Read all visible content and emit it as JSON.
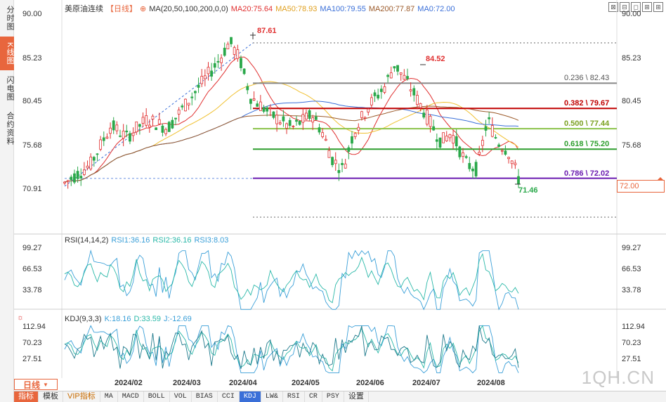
{
  "side_tabs": [
    "分时图",
    "K线图",
    "闪电图",
    "合约资料"
  ],
  "top_icons": [
    "⊠",
    "⊟",
    "◻",
    "⊞",
    "⊞"
  ],
  "legend": {
    "title": "美原油连续",
    "period": "【日线】",
    "ma_label": "MA(20,50,100,200,0,0)",
    "ma20": "MA20:75.64",
    "ma50": "MA50:78.93",
    "ma100": "MA100:79.55",
    "ma200": "MA200:77.87",
    "ma0": "MA0:72.00"
  },
  "price_axis": [
    "90.00",
    "85.23",
    "80.45",
    "75.68",
    "70.91"
  ],
  "fib": [
    {
      "label": "0.236 \\ 82.43",
      "price": 82.43,
      "color": "#888888"
    },
    {
      "label": "0.382 \\ 79.67",
      "price": 79.67,
      "color": "#c00000"
    },
    {
      "label": "0.500 \\ 77.44",
      "price": 77.44,
      "color": "#8bc34a"
    },
    {
      "label": "0.618 \\ 75.20",
      "price": 75.2,
      "color": "#2e9e2e"
    },
    {
      "label": "0.786 \\ 72.02",
      "price": 72.02,
      "color": "#6a1bb0"
    }
  ],
  "annotations": {
    "high": "87.61",
    "mid_high": "84.52",
    "low": "71.46"
  },
  "current_price": "72.00",
  "rsi": {
    "label": "RSI(14,14,2)",
    "r1": "RSI1:36.16",
    "r2": "RSI2:36.16",
    "r3": "RSI3:8.03",
    "axis": [
      "99.27",
      "66.53",
      "33.78"
    ]
  },
  "kdj": {
    "label": "KDJ(9,3,3)",
    "k": "K:18.16",
    "d": "D:33.59",
    "j": "J:-12.69",
    "axis": [
      "112.94",
      "70.23",
      "27.51"
    ]
  },
  "dates": [
    "2024/02",
    "2024/03",
    "2024/04",
    "2024/05",
    "2024/06",
    "2024/07",
    "2024/08"
  ],
  "period_label": "日线",
  "bottom_tabs": [
    "指标",
    "模板",
    "VIP指标",
    "MA",
    "MACD",
    "BOLL",
    "VOL",
    "BIAS",
    "CCI",
    "KDJ",
    "LW&",
    "RSI",
    "CR",
    "PSY",
    "设置"
  ],
  "watermark": "1QH.CN",
  "colors": {
    "up": "#e03030",
    "down": "#2aa84a",
    "ma20": "#e03030",
    "ma50": "#f0c030",
    "ma100": "#3a6fd8",
    "ma200": "#9b5a2a",
    "accent": "#e8663d"
  }
}
